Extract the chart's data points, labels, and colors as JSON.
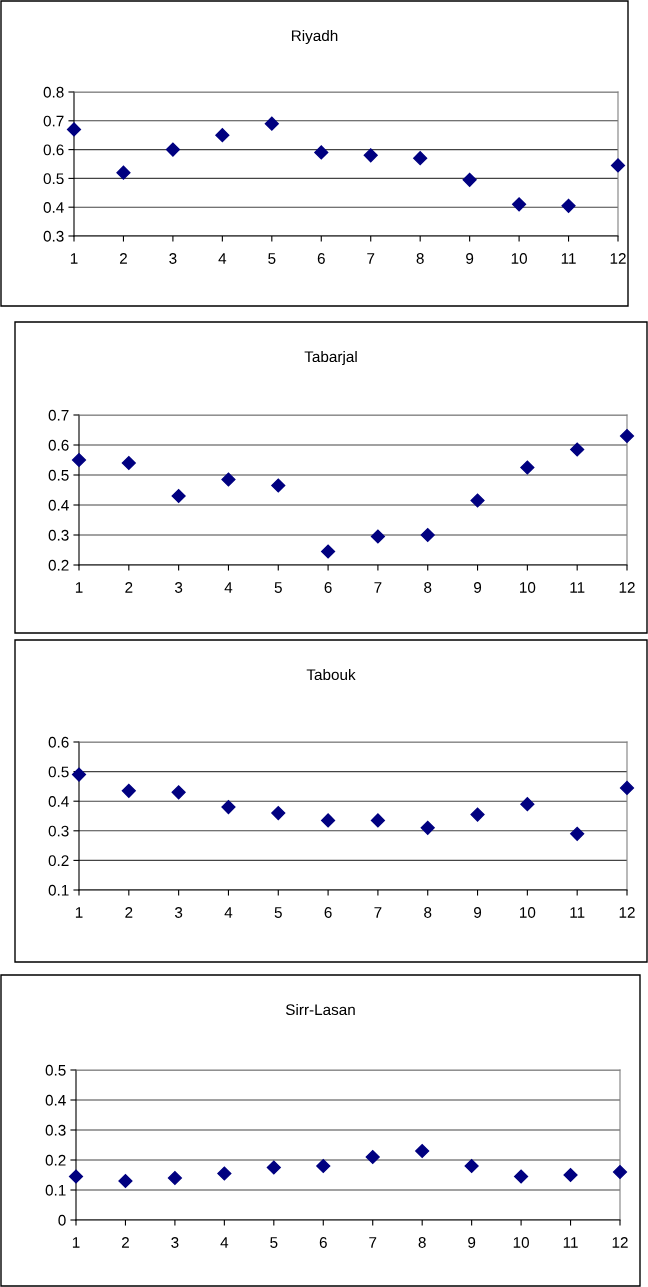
{
  "chart_data": [
    {
      "type": "scatter",
      "title": "Riyadh",
      "x": [
        1,
        2,
        3,
        4,
        5,
        6,
        7,
        8,
        9,
        10,
        11,
        12
      ],
      "xlim": [
        1,
        12
      ],
      "xticks": [
        1,
        2,
        3,
        4,
        5,
        6,
        7,
        8,
        9,
        10,
        11,
        12
      ],
      "ylim": [
        0.3,
        0.8
      ],
      "yticks": [
        0.3,
        0.4,
        0.5,
        0.6,
        0.7,
        0.8
      ],
      "grid": "y",
      "marker": "diamond",
      "series": [
        {
          "color": "#000080",
          "values": [
            0.67,
            0.52,
            0.6,
            0.65,
            0.69,
            0.59,
            0.58,
            0.57,
            0.495,
            0.41,
            0.405,
            0.545
          ]
        }
      ]
    },
    {
      "type": "scatter",
      "title": "Tabarjal",
      "x": [
        1,
        2,
        3,
        4,
        5,
        6,
        7,
        8,
        9,
        10,
        11,
        12
      ],
      "xlim": [
        1,
        12
      ],
      "xticks": [
        1,
        2,
        3,
        4,
        5,
        6,
        7,
        8,
        9,
        10,
        11,
        12
      ],
      "ylim": [
        0.2,
        0.7
      ],
      "yticks": [
        0.2,
        0.3,
        0.4,
        0.5,
        0.6,
        0.7
      ],
      "grid": "y",
      "marker": "diamond",
      "series": [
        {
          "color": "#000080",
          "values": [
            0.55,
            0.54,
            0.43,
            0.485,
            0.465,
            0.245,
            0.295,
            0.3,
            0.415,
            0.525,
            0.585,
            0.63
          ]
        }
      ]
    },
    {
      "type": "scatter",
      "title": "Tabouk",
      "x": [
        1,
        2,
        3,
        4,
        5,
        6,
        7,
        8,
        9,
        10,
        11,
        12
      ],
      "xlim": [
        1,
        12
      ],
      "xticks": [
        1,
        2,
        3,
        4,
        5,
        6,
        7,
        8,
        9,
        10,
        11,
        12
      ],
      "ylim": [
        0.1,
        0.6
      ],
      "yticks": [
        0.1,
        0.2,
        0.3,
        0.4,
        0.5,
        0.6
      ],
      "grid": "y",
      "marker": "diamond",
      "series": [
        {
          "color": "#000080",
          "values": [
            0.49,
            0.435,
            0.43,
            0.38,
            0.36,
            0.335,
            0.335,
            0.31,
            0.355,
            0.39,
            0.29,
            0.445
          ]
        }
      ]
    },
    {
      "type": "scatter",
      "title": "Sirr-Lasan",
      "x": [
        1,
        2,
        3,
        4,
        5,
        6,
        7,
        8,
        9,
        10,
        11,
        12
      ],
      "xlim": [
        1,
        12
      ],
      "xticks": [
        1,
        2,
        3,
        4,
        5,
        6,
        7,
        8,
        9,
        10,
        11,
        12
      ],
      "ylim": [
        0,
        0.5
      ],
      "yticks": [
        0,
        0.1,
        0.2,
        0.3,
        0.4,
        0.5
      ],
      "grid": "y",
      "marker": "diamond",
      "series": [
        {
          "color": "#000080",
          "values": [
            0.145,
            0.13,
            0.14,
            0.155,
            0.175,
            0.18,
            0.21,
            0.23,
            0.18,
            0.145,
            0.15,
            0.16
          ]
        }
      ]
    }
  ]
}
